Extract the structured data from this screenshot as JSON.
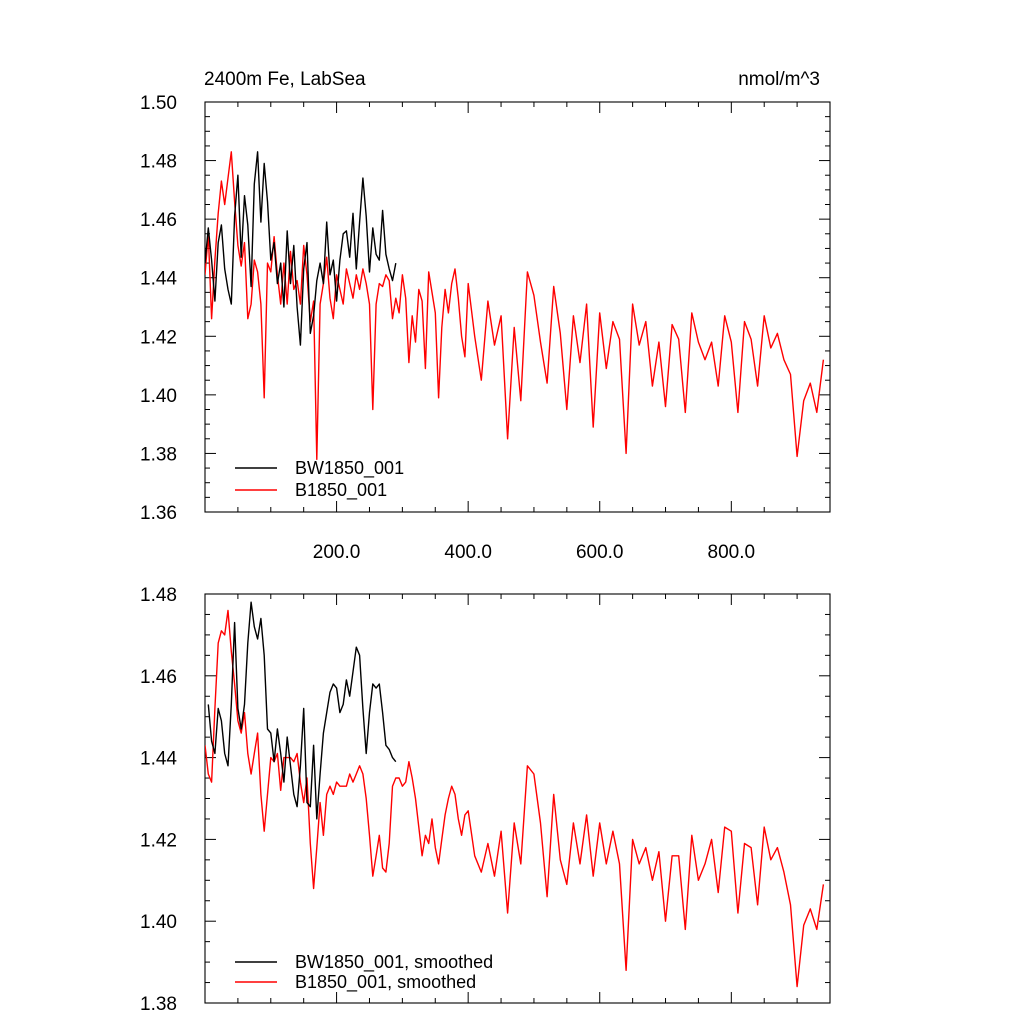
{
  "chart_data": [
    {
      "type": "line",
      "title": "2400m Fe, LabSea",
      "units": "nmol/m^3",
      "xlim": [
        0,
        950
      ],
      "ylim": [
        1.36,
        1.5
      ],
      "x_tick_labels": [
        "200.0",
        "400.0",
        "600.0",
        "800.0"
      ],
      "x_ticks": [
        200,
        400,
        600,
        800
      ],
      "y_tick_labels": [
        "1.36",
        "1.38",
        "1.40",
        "1.42",
        "1.44",
        "1.46",
        "1.48",
        "1.50"
      ],
      "y_ticks": [
        1.36,
        1.38,
        1.4,
        1.42,
        1.44,
        1.46,
        1.48,
        1.5
      ],
      "legend_position": "bottom-left",
      "series": [
        {
          "name": "BW1850_001",
          "color": "#000000",
          "x": [
            0,
            5,
            10,
            15,
            20,
            25,
            30,
            35,
            40,
            45,
            50,
            55,
            60,
            65,
            70,
            75,
            80,
            85,
            90,
            95,
            100,
            105,
            110,
            115,
            120,
            125,
            130,
            135,
            140,
            145,
            150,
            155,
            160,
            165,
            170,
            175,
            180,
            185,
            190,
            195,
            200,
            205,
            210,
            215,
            220,
            225,
            230,
            235,
            240,
            245,
            250,
            255,
            260,
            265,
            270,
            275,
            280,
            285,
            290
          ],
          "values": [
            1.445,
            1.457,
            1.446,
            1.432,
            1.452,
            1.458,
            1.443,
            1.436,
            1.431,
            1.461,
            1.475,
            1.447,
            1.468,
            1.458,
            1.437,
            1.472,
            1.483,
            1.459,
            1.479,
            1.466,
            1.446,
            1.452,
            1.438,
            1.445,
            1.43,
            1.456,
            1.438,
            1.451,
            1.43,
            1.417,
            1.443,
            1.452,
            1.421,
            1.427,
            1.439,
            1.445,
            1.438,
            1.459,
            1.441,
            1.446,
            1.432,
            1.446,
            1.455,
            1.456,
            1.447,
            1.462,
            1.443,
            1.459,
            1.474,
            1.461,
            1.442,
            1.457,
            1.448,
            1.446,
            1.463,
            1.448,
            1.443,
            1.439,
            1.445
          ]
        },
        {
          "name": "B1850_001",
          "color": "#ff0000",
          "x": [
            0,
            5,
            10,
            15,
            20,
            25,
            30,
            35,
            40,
            45,
            50,
            55,
            60,
            65,
            70,
            75,
            80,
            85,
            90,
            95,
            100,
            105,
            110,
            115,
            120,
            125,
            130,
            135,
            140,
            145,
            150,
            155,
            160,
            165,
            170,
            175,
            180,
            185,
            190,
            195,
            200,
            205,
            210,
            215,
            220,
            225,
            230,
            235,
            240,
            245,
            250,
            255,
            260,
            265,
            270,
            275,
            280,
            285,
            290,
            295,
            300,
            305,
            310,
            315,
            320,
            325,
            330,
            335,
            340,
            345,
            350,
            355,
            360,
            365,
            370,
            375,
            380,
            385,
            390,
            395,
            400,
            410,
            420,
            430,
            440,
            450,
            460,
            470,
            480,
            490,
            500,
            510,
            520,
            530,
            540,
            550,
            560,
            570,
            580,
            590,
            600,
            610,
            620,
            630,
            640,
            650,
            660,
            670,
            680,
            690,
            700,
            710,
            720,
            730,
            740,
            750,
            760,
            770,
            780,
            790,
            800,
            810,
            820,
            830,
            840,
            850,
            860,
            870,
            880,
            890,
            900,
            910,
            920,
            930,
            940
          ],
          "values": [
            1.441,
            1.455,
            1.426,
            1.446,
            1.462,
            1.473,
            1.465,
            1.474,
            1.483,
            1.466,
            1.451,
            1.444,
            1.452,
            1.426,
            1.431,
            1.446,
            1.442,
            1.431,
            1.399,
            1.445,
            1.442,
            1.454,
            1.441,
            1.431,
            1.445,
            1.431,
            1.449,
            1.436,
            1.439,
            1.431,
            1.451,
            1.441,
            1.425,
            1.432,
            1.378,
            1.431,
            1.438,
            1.447,
            1.433,
            1.426,
            1.441,
            1.436,
            1.431,
            1.443,
            1.438,
            1.433,
            1.441,
            1.436,
            1.443,
            1.438,
            1.431,
            1.395,
            1.431,
            1.438,
            1.437,
            1.441,
            1.439,
            1.426,
            1.433,
            1.428,
            1.441,
            1.433,
            1.411,
            1.427,
            1.418,
            1.436,
            1.432,
            1.409,
            1.442,
            1.435,
            1.428,
            1.399,
            1.423,
            1.436,
            1.428,
            1.438,
            1.443,
            1.433,
            1.42,
            1.413,
            1.438,
            1.42,
            1.405,
            1.432,
            1.417,
            1.427,
            1.385,
            1.423,
            1.398,
            1.442,
            1.434,
            1.418,
            1.404,
            1.437,
            1.421,
            1.395,
            1.427,
            1.411,
            1.431,
            1.389,
            1.428,
            1.409,
            1.425,
            1.419,
            1.38,
            1.431,
            1.417,
            1.425,
            1.403,
            1.418,
            1.396,
            1.424,
            1.419,
            1.394,
            1.428,
            1.418,
            1.412,
            1.418,
            1.403,
            1.427,
            1.418,
            1.394,
            1.425,
            1.419,
            1.403,
            1.427,
            1.416,
            1.421,
            1.412,
            1.407,
            1.379,
            1.398,
            1.404,
            1.394,
            1.412
          ]
        }
      ]
    },
    {
      "type": "line",
      "xlim": [
        0,
        950
      ],
      "ylim": [
        1.38,
        1.48
      ],
      "y_tick_labels": [
        "1.38",
        "1.40",
        "1.42",
        "1.44",
        "1.46",
        "1.48"
      ],
      "y_ticks": [
        1.38,
        1.4,
        1.42,
        1.44,
        1.46,
        1.48
      ],
      "x_ticks": [
        200,
        400,
        600,
        800
      ],
      "legend_position": "bottom-left",
      "series": [
        {
          "name": "BW1850_001, smoothed",
          "color": "#000000",
          "x": [
            5,
            10,
            15,
            20,
            25,
            30,
            35,
            40,
            45,
            50,
            55,
            60,
            65,
            70,
            75,
            80,
            85,
            90,
            95,
            100,
            105,
            110,
            115,
            120,
            125,
            130,
            135,
            140,
            145,
            150,
            155,
            160,
            165,
            170,
            175,
            180,
            185,
            190,
            195,
            200,
            205,
            210,
            215,
            220,
            225,
            230,
            235,
            240,
            245,
            250,
            255,
            260,
            265,
            270,
            275,
            280,
            285,
            290
          ],
          "values": [
            1.453,
            1.444,
            1.441,
            1.452,
            1.449,
            1.441,
            1.438,
            1.453,
            1.473,
            1.452,
            1.447,
            1.453,
            1.468,
            1.478,
            1.472,
            1.469,
            1.474,
            1.465,
            1.447,
            1.446,
            1.439,
            1.447,
            1.441,
            1.434,
            1.445,
            1.438,
            1.431,
            1.428,
            1.438,
            1.452,
            1.429,
            1.428,
            1.443,
            1.425,
            1.436,
            1.446,
            1.451,
            1.456,
            1.458,
            1.457,
            1.451,
            1.453,
            1.459,
            1.455,
            1.461,
            1.467,
            1.465,
            1.452,
            1.441,
            1.451,
            1.458,
            1.457,
            1.458,
            1.451,
            1.443,
            1.442,
            1.44,
            1.439
          ]
        },
        {
          "name": "B1850_001, smoothed",
          "color": "#ff0000",
          "x": [
            0,
            5,
            10,
            15,
            20,
            25,
            30,
            35,
            40,
            45,
            50,
            55,
            60,
            65,
            70,
            75,
            80,
            85,
            90,
            95,
            100,
            105,
            110,
            115,
            120,
            125,
            130,
            135,
            140,
            145,
            150,
            155,
            160,
            165,
            170,
            175,
            180,
            185,
            190,
            195,
            200,
            205,
            210,
            215,
            220,
            225,
            230,
            235,
            240,
            245,
            250,
            255,
            260,
            265,
            270,
            275,
            280,
            285,
            290,
            295,
            300,
            305,
            310,
            315,
            320,
            325,
            330,
            335,
            340,
            345,
            350,
            355,
            360,
            365,
            370,
            375,
            380,
            385,
            390,
            395,
            400,
            410,
            420,
            430,
            440,
            450,
            460,
            470,
            480,
            490,
            500,
            510,
            520,
            530,
            540,
            550,
            560,
            570,
            580,
            590,
            600,
            610,
            620,
            630,
            640,
            650,
            660,
            670,
            680,
            690,
            700,
            710,
            720,
            730,
            740,
            750,
            760,
            770,
            780,
            790,
            800,
            810,
            820,
            830,
            840,
            850,
            860,
            870,
            880,
            890,
            900,
            910,
            920,
            930,
            940
          ],
          "values": [
            1.443,
            1.436,
            1.434,
            1.452,
            1.468,
            1.471,
            1.47,
            1.476,
            1.466,
            1.458,
            1.449,
            1.446,
            1.451,
            1.441,
            1.436,
            1.441,
            1.446,
            1.431,
            1.422,
            1.431,
            1.44,
            1.439,
            1.441,
            1.432,
            1.44,
            1.44,
            1.44,
            1.439,
            1.441,
            1.434,
            1.429,
            1.435,
            1.419,
            1.408,
            1.418,
            1.429,
            1.421,
            1.431,
            1.433,
            1.431,
            1.434,
            1.433,
            1.433,
            1.433,
            1.436,
            1.434,
            1.436,
            1.438,
            1.436,
            1.43,
            1.421,
            1.411,
            1.416,
            1.421,
            1.413,
            1.412,
            1.419,
            1.433,
            1.435,
            1.435,
            1.433,
            1.434,
            1.439,
            1.435,
            1.43,
            1.423,
            1.416,
            1.421,
            1.419,
            1.425,
            1.418,
            1.414,
            1.42,
            1.426,
            1.43,
            1.433,
            1.431,
            1.425,
            1.421,
            1.426,
            1.427,
            1.416,
            1.412,
            1.419,
            1.411,
            1.422,
            1.402,
            1.424,
            1.414,
            1.438,
            1.436,
            1.424,
            1.406,
            1.431,
            1.415,
            1.409,
            1.424,
            1.414,
            1.426,
            1.411,
            1.424,
            1.414,
            1.422,
            1.414,
            1.388,
            1.42,
            1.414,
            1.418,
            1.41,
            1.417,
            1.4,
            1.416,
            1.416,
            1.398,
            1.421,
            1.41,
            1.414,
            1.42,
            1.407,
            1.423,
            1.422,
            1.402,
            1.419,
            1.418,
            1.404,
            1.423,
            1.415,
            1.418,
            1.412,
            1.404,
            1.384,
            1.399,
            1.403,
            1.398,
            1.409
          ]
        }
      ]
    }
  ]
}
